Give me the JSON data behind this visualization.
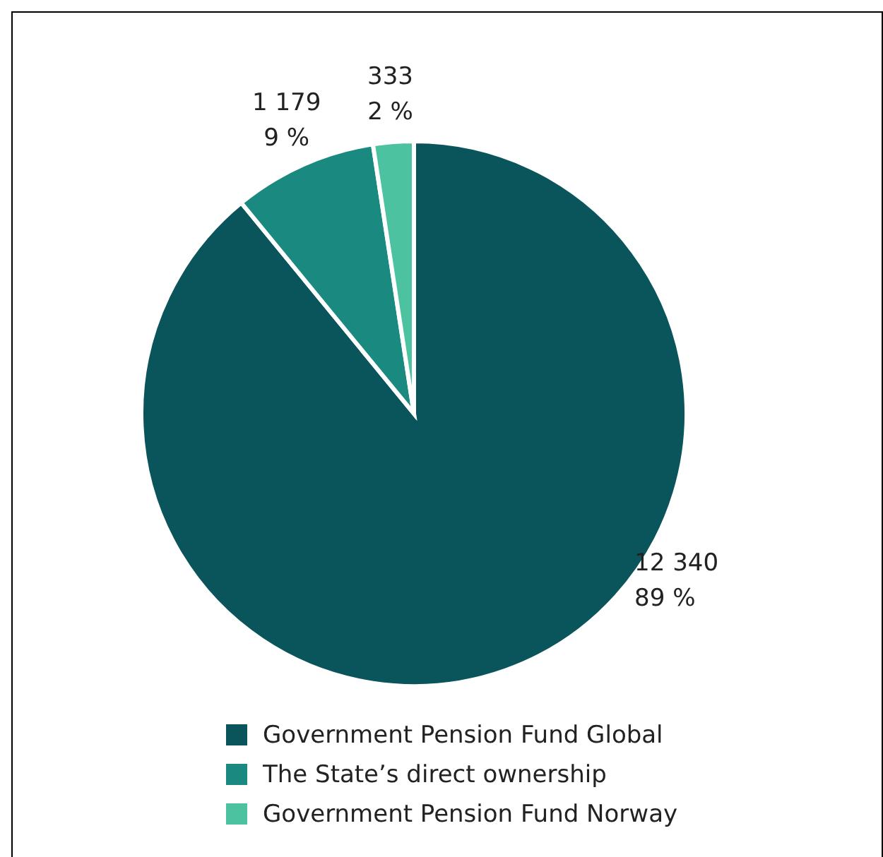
{
  "chart_data": {
    "type": "pie",
    "categories": [
      "Government Pension Fund Global",
      "The State’s direct ownership",
      "Government Pension Fund Norway"
    ],
    "values": [
      12340,
      1179,
      333
    ],
    "colors": [
      "#0a555b",
      "#1a8a80",
      "#4dc2a0"
    ],
    "value_labels": [
      "12 340\n89 %",
      "1 179\n9 %",
      "333\n2 %"
    ],
    "legend": "bottom"
  }
}
